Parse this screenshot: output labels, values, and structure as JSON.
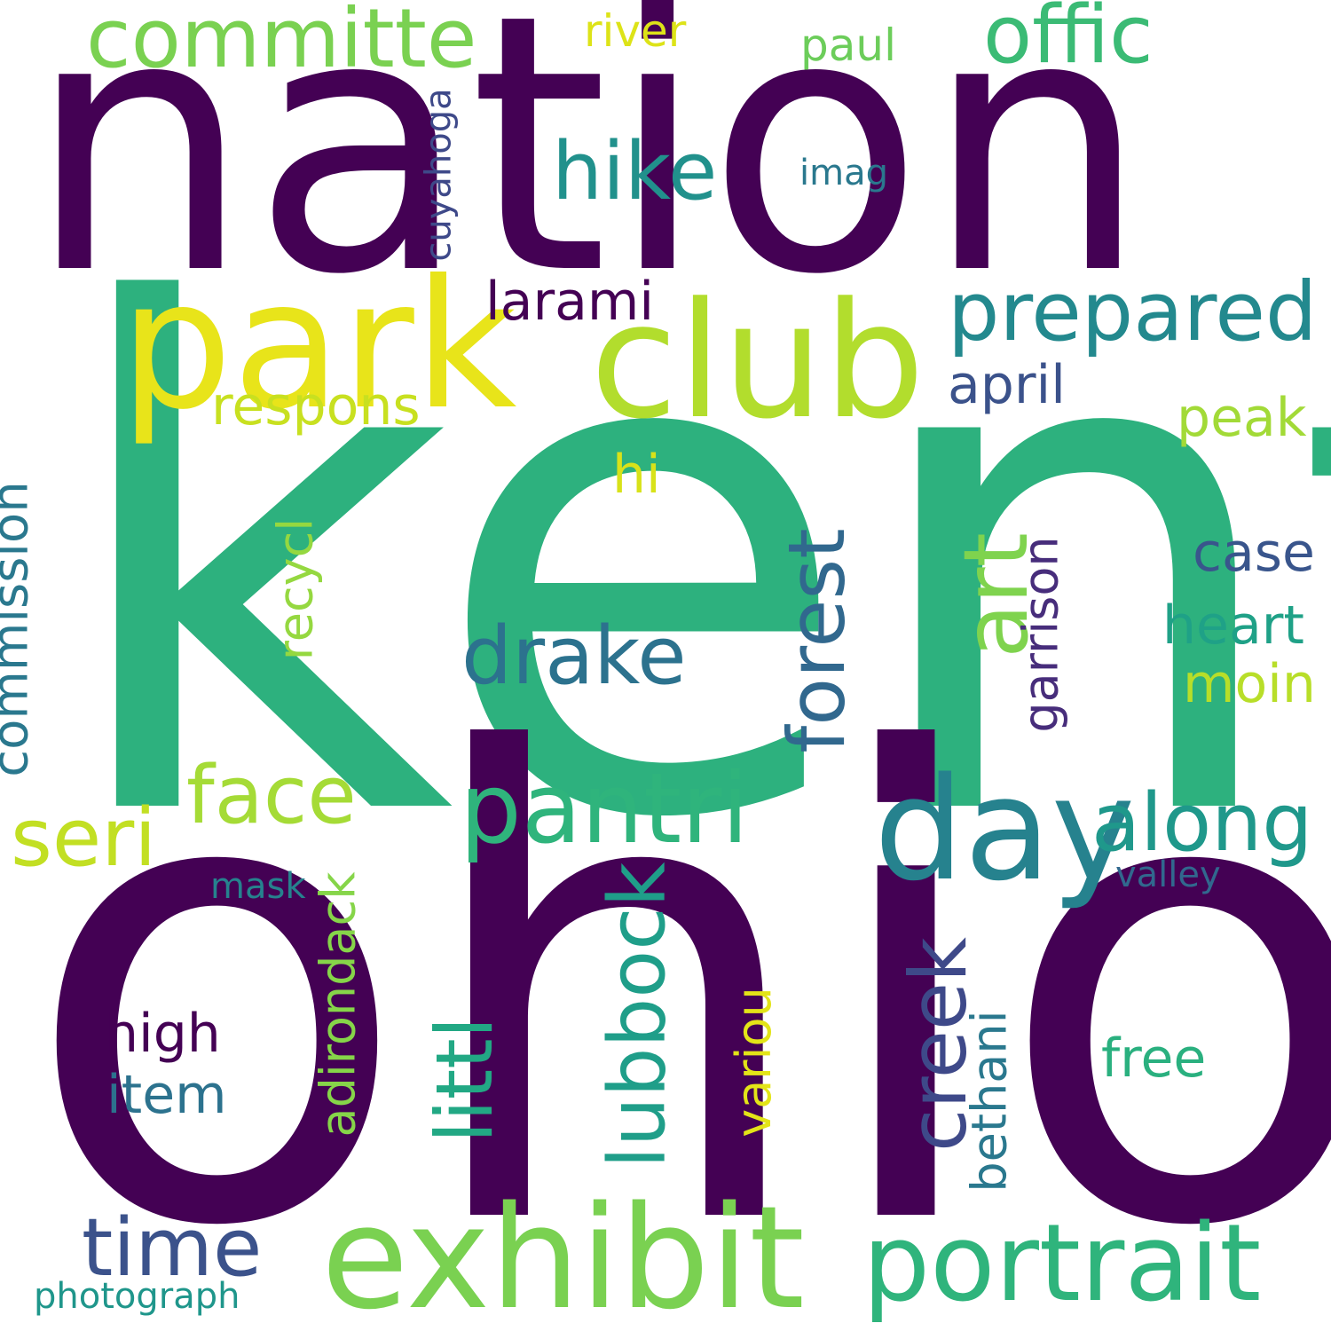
{
  "words": [
    {
      "text": "kent",
      "color": "#2db17e",
      "rotated": false
    },
    {
      "text": "ohio",
      "color": "#440154",
      "rotated": false
    },
    {
      "text": "nation",
      "color": "#440154",
      "rotated": false
    },
    {
      "text": "park",
      "color": "#e8e41a",
      "rotated": false
    },
    {
      "text": "club",
      "color": "#b2dd2d",
      "rotated": false
    },
    {
      "text": "exhibit",
      "color": "#7ad151",
      "rotated": false
    },
    {
      "text": "portrait",
      "color": "#2fb47c",
      "rotated": false
    },
    {
      "text": "day",
      "color": "#26828e",
      "rotated": false
    },
    {
      "text": "pantri",
      "color": "#2fb47c",
      "rotated": false
    },
    {
      "text": "committe",
      "color": "#7ad151",
      "rotated": false
    },
    {
      "text": "offic",
      "color": "#3bbb75",
      "rotated": false
    },
    {
      "text": "prepared",
      "color": "#23898e",
      "rotated": false
    },
    {
      "text": "hike",
      "color": "#21918c",
      "rotated": false
    },
    {
      "text": "drake",
      "color": "#2c728e",
      "rotated": false
    },
    {
      "text": "along",
      "color": "#1f988b",
      "rotated": false
    },
    {
      "text": "face",
      "color": "#a5db36",
      "rotated": false
    },
    {
      "text": "seri",
      "color": "#c2df23",
      "rotated": false
    },
    {
      "text": "time",
      "color": "#3b528b",
      "rotated": false
    },
    {
      "text": "art",
      "color": "#7fd34e",
      "rotated": true
    },
    {
      "text": "forest",
      "color": "#31688e",
      "rotated": true
    },
    {
      "text": "lubbock",
      "color": "#1f9e89",
      "rotated": true
    },
    {
      "text": "littl",
      "color": "#22a884",
      "rotated": true
    },
    {
      "text": "creek",
      "color": "#3e4989",
      "rotated": true
    },
    {
      "text": "commission",
      "color": "#2a788e",
      "rotated": true
    },
    {
      "text": "adirondack",
      "color": "#86d549",
      "rotated": true
    },
    {
      "text": "recycl",
      "color": "#95d840",
      "rotated": true
    },
    {
      "text": "variou",
      "color": "#e3e418",
      "rotated": true
    },
    {
      "text": "bethani",
      "color": "#2a788e",
      "rotated": true
    },
    {
      "text": "garrison",
      "color": "#472d7b",
      "rotated": true
    },
    {
      "text": "cuyahoga",
      "color": "#3e4989",
      "rotated": true
    },
    {
      "text": "respons",
      "color": "#c8e020",
      "rotated": false
    },
    {
      "text": "larami",
      "color": "#440154",
      "rotated": false
    },
    {
      "text": "april",
      "color": "#3b528b",
      "rotated": false
    },
    {
      "text": "peak",
      "color": "#a2da37",
      "rotated": false
    },
    {
      "text": "hi",
      "color": "#d8e219",
      "rotated": false
    },
    {
      "text": "case",
      "color": "#39558c",
      "rotated": false
    },
    {
      "text": "heart",
      "color": "#1fa187",
      "rotated": false
    },
    {
      "text": "moin",
      "color": "#b8de29",
      "rotated": false
    },
    {
      "text": "free",
      "color": "#2ab07f",
      "rotated": false
    },
    {
      "text": "high",
      "color": "#440154",
      "rotated": false
    },
    {
      "text": "item",
      "color": "#2c728e",
      "rotated": false
    },
    {
      "text": "river",
      "color": "#dde318",
      "rotated": false
    },
    {
      "text": "paul",
      "color": "#6ccd5a",
      "rotated": false
    },
    {
      "text": "imag",
      "color": "#2a788e",
      "rotated": false
    },
    {
      "text": "mask",
      "color": "#26828e",
      "rotated": false
    },
    {
      "text": "valley",
      "color": "#31688e",
      "rotated": false
    },
    {
      "text": "photograph",
      "color": "#1f968b",
      "rotated": false
    }
  ]
}
